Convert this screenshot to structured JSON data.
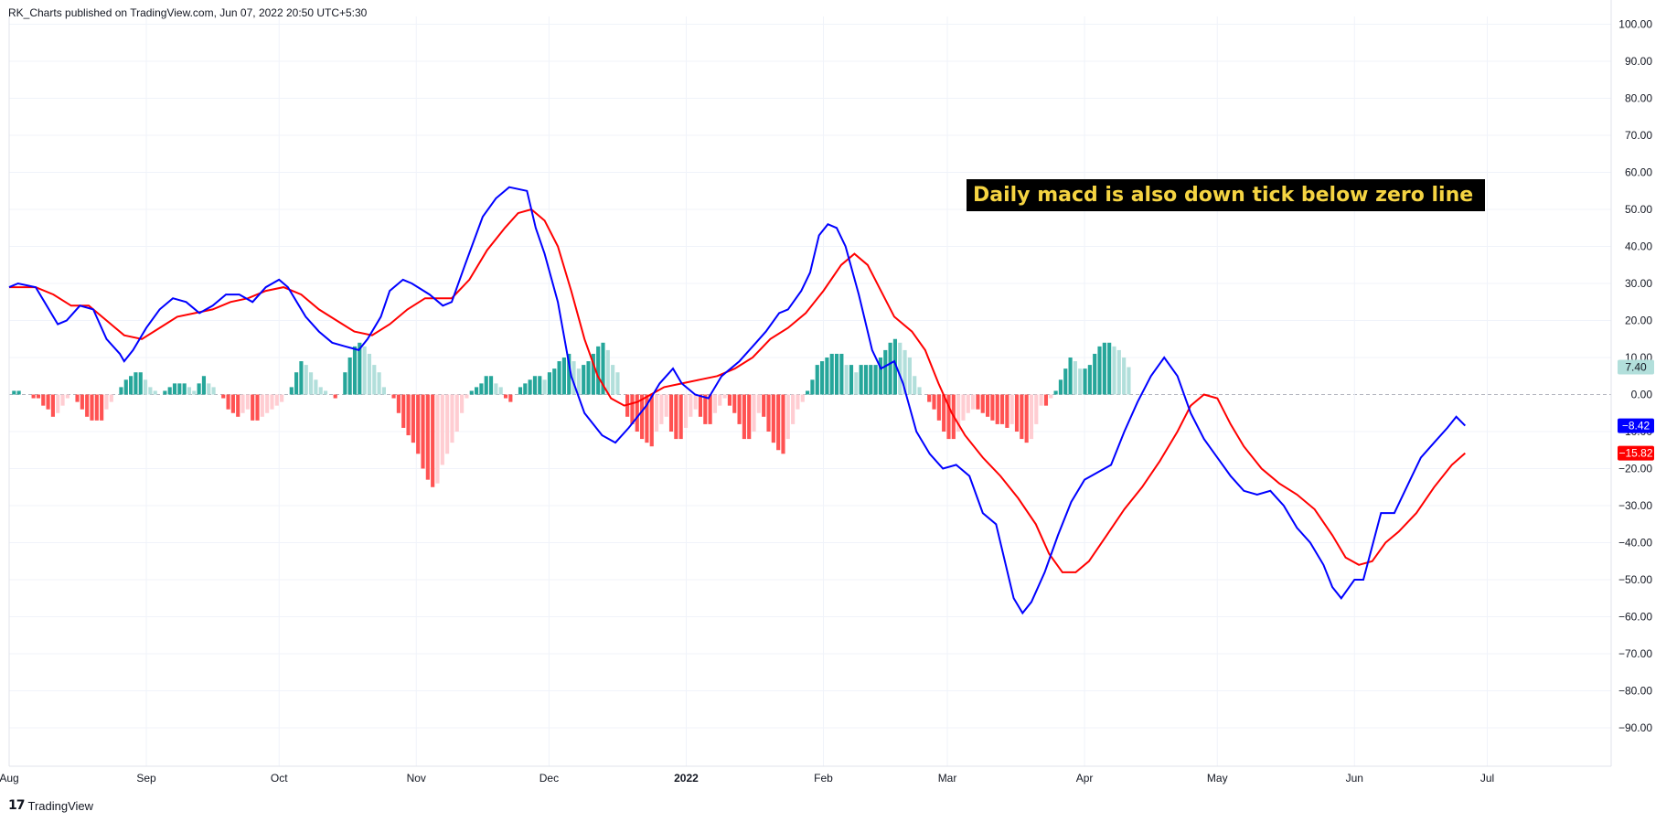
{
  "header": {
    "publisher": "RK_Charts published on TradingView.com, Jun 07, 2022 20:50 UTC+5:30"
  },
  "footer": {
    "brand": "TradingView",
    "logo_icon": "tradingview-logo-icon"
  },
  "colors": {
    "macd": "#0000ff",
    "signal": "#ff0000",
    "hist_pos_rising": "#26a69a",
    "hist_pos_falling": "#b2dfdb",
    "hist_neg_falling": "#ff5252",
    "hist_neg_rising": "#ffcdd2",
    "grid": "#f0f3fa",
    "zero_line": "#b2b5be"
  },
  "chart_data": {
    "type": "line",
    "title": "",
    "annotation": "Daily macd is also down tick below zero line",
    "ylim": [
      -100,
      100
    ],
    "y_ticks": [
      "100.00",
      "90.00",
      "80.00",
      "70.00",
      "60.00",
      "50.00",
      "40.00",
      "30.00",
      "20.00",
      "10.00",
      "0.00",
      "−10.00",
      "−20.00",
      "−30.00",
      "−40.00",
      "−50.00",
      "−60.00",
      "−70.00",
      "−80.00",
      "−90.00"
    ],
    "x_ticks": [
      "Aug",
      "Sep",
      "Oct",
      "Nov",
      "Dec",
      "2022",
      "Feb",
      "Mar",
      "Apr",
      "May",
      "Jun",
      "Jul"
    ],
    "x_tick_days": [
      0,
      31,
      61,
      92,
      122,
      153,
      184,
      212,
      243,
      273,
      304,
      334
    ],
    "x_range_days": [
      0,
      362
    ],
    "last_values": [
      {
        "label": "7.40",
        "value": 7.4,
        "series": "histogram"
      },
      {
        "label": "−8.42",
        "value": -8.42,
        "series": "MACD"
      },
      {
        "label": "−15.82",
        "value": -15.82,
        "series": "Signal"
      }
    ],
    "series": [
      {
        "name": "MACD",
        "type": "line",
        "points": [
          [
            0,
            29
          ],
          [
            2,
            30
          ],
          [
            6,
            29
          ],
          [
            8,
            25
          ],
          [
            11,
            19
          ],
          [
            13,
            20
          ],
          [
            16,
            24
          ],
          [
            19,
            23
          ],
          [
            22,
            15
          ],
          [
            25,
            11
          ],
          [
            26,
            9
          ],
          [
            28,
            12
          ],
          [
            31,
            18
          ],
          [
            34,
            23
          ],
          [
            37,
            26
          ],
          [
            40,
            25
          ],
          [
            43,
            22
          ],
          [
            46,
            24
          ],
          [
            49,
            27
          ],
          [
            52,
            27
          ],
          [
            55,
            25
          ],
          [
            58,
            29
          ],
          [
            61,
            31
          ],
          [
            63,
            29
          ],
          [
            65,
            25
          ],
          [
            67,
            21
          ],
          [
            70,
            17
          ],
          [
            73,
            14
          ],
          [
            76,
            13
          ],
          [
            79,
            12
          ],
          [
            81,
            15
          ],
          [
            84,
            21
          ],
          [
            86,
            28
          ],
          [
            89,
            31
          ],
          [
            91,
            30
          ],
          [
            95,
            27
          ],
          [
            98,
            24
          ],
          [
            100,
            25
          ],
          [
            103,
            35
          ],
          [
            107,
            48
          ],
          [
            110,
            53
          ],
          [
            113,
            56
          ],
          [
            117,
            55
          ],
          [
            119,
            45
          ],
          [
            121,
            38
          ],
          [
            124,
            25
          ],
          [
            127,
            5
          ],
          [
            130,
            -5
          ],
          [
            134,
            -11
          ],
          [
            137,
            -13
          ],
          [
            140,
            -9
          ],
          [
            144,
            -3
          ],
          [
            147,
            3
          ],
          [
            150,
            7
          ],
          [
            152,
            3
          ],
          [
            155,
            0
          ],
          [
            158,
            -1
          ],
          [
            161,
            5
          ],
          [
            165,
            9
          ],
          [
            168,
            13
          ],
          [
            171,
            17
          ],
          [
            174,
            22
          ],
          [
            176,
            23
          ],
          [
            179,
            28
          ],
          [
            181,
            33
          ],
          [
            183,
            43
          ],
          [
            185,
            46
          ],
          [
            187,
            45
          ],
          [
            189,
            40
          ],
          [
            192,
            27
          ],
          [
            195,
            12
          ],
          [
            197,
            7
          ],
          [
            200,
            9
          ],
          [
            202,
            3
          ],
          [
            205,
            -10
          ],
          [
            208,
            -16
          ],
          [
            211,
            -20
          ],
          [
            214,
            -19
          ],
          [
            217,
            -22
          ],
          [
            220,
            -32
          ],
          [
            223,
            -35
          ],
          [
            227,
            -55
          ],
          [
            229,
            -59
          ],
          [
            231,
            -56
          ],
          [
            234,
            -48
          ],
          [
            237,
            -38
          ],
          [
            240,
            -29
          ],
          [
            243,
            -23
          ],
          [
            246,
            -21
          ],
          [
            249,
            -19
          ],
          [
            252,
            -10
          ],
          [
            255,
            -2
          ],
          [
            258,
            5
          ],
          [
            261,
            10
          ],
          [
            264,
            5
          ],
          [
            267,
            -5
          ],
          [
            270,
            -12
          ],
          [
            273,
            -17
          ],
          [
            276,
            -22
          ],
          [
            279,
            -26
          ],
          [
            282,
            -27
          ],
          [
            285,
            -26
          ],
          [
            288,
            -30
          ],
          [
            291,
            -36
          ],
          [
            294,
            -40
          ],
          [
            297,
            -46
          ],
          [
            299,
            -52
          ],
          [
            301,
            -55
          ],
          [
            304,
            -50
          ],
          [
            306,
            -50
          ],
          [
            310,
            -32
          ],
          [
            313,
            -32
          ],
          [
            317,
            -22
          ],
          [
            319,
            -17
          ],
          [
            322,
            -13
          ],
          [
            325,
            -9
          ],
          [
            327,
            -6
          ],
          [
            329,
            -8.42
          ]
        ]
      },
      {
        "name": "Signal",
        "type": "line",
        "points": [
          [
            0,
            29
          ],
          [
            6,
            29
          ],
          [
            10,
            27
          ],
          [
            14,
            24
          ],
          [
            18,
            24
          ],
          [
            22,
            20
          ],
          [
            26,
            16
          ],
          [
            30,
            15
          ],
          [
            34,
            18
          ],
          [
            38,
            21
          ],
          [
            42,
            22
          ],
          [
            46,
            23
          ],
          [
            50,
            25
          ],
          [
            54,
            26
          ],
          [
            58,
            28
          ],
          [
            62,
            29
          ],
          [
            66,
            27
          ],
          [
            70,
            23
          ],
          [
            74,
            20
          ],
          [
            78,
            17
          ],
          [
            82,
            16
          ],
          [
            86,
            19
          ],
          [
            90,
            23
          ],
          [
            94,
            26
          ],
          [
            98,
            26
          ],
          [
            100,
            26
          ],
          [
            104,
            31
          ],
          [
            108,
            39
          ],
          [
            112,
            45
          ],
          [
            115,
            49
          ],
          [
            118,
            50
          ],
          [
            121,
            47
          ],
          [
            124,
            40
          ],
          [
            127,
            28
          ],
          [
            130,
            15
          ],
          [
            133,
            5
          ],
          [
            136,
            -1
          ],
          [
            139,
            -3
          ],
          [
            142,
            -2
          ],
          [
            145,
            0
          ],
          [
            148,
            2
          ],
          [
            152,
            3
          ],
          [
            156,
            4
          ],
          [
            160,
            5
          ],
          [
            164,
            7
          ],
          [
            168,
            10
          ],
          [
            172,
            15
          ],
          [
            176,
            18
          ],
          [
            180,
            22
          ],
          [
            184,
            28
          ],
          [
            188,
            35
          ],
          [
            191,
            38
          ],
          [
            194,
            35
          ],
          [
            197,
            28
          ],
          [
            200,
            21
          ],
          [
            204,
            17
          ],
          [
            207,
            12
          ],
          [
            210,
            3
          ],
          [
            213,
            -5
          ],
          [
            216,
            -11
          ],
          [
            220,
            -17
          ],
          [
            224,
            -22
          ],
          [
            228,
            -28
          ],
          [
            232,
            -35
          ],
          [
            235,
            -43
          ],
          [
            238,
            -48
          ],
          [
            241,
            -48
          ],
          [
            244,
            -45
          ],
          [
            248,
            -38
          ],
          [
            252,
            -31
          ],
          [
            256,
            -25
          ],
          [
            260,
            -18
          ],
          [
            264,
            -10
          ],
          [
            267,
            -3
          ],
          [
            270,
            0
          ],
          [
            273,
            -1
          ],
          [
            276,
            -8
          ],
          [
            279,
            -14
          ],
          [
            283,
            -20
          ],
          [
            287,
            -24
          ],
          [
            291,
            -27
          ],
          [
            295,
            -31
          ],
          [
            299,
            -38
          ],
          [
            302,
            -44
          ],
          [
            305,
            -46
          ],
          [
            308,
            -45
          ],
          [
            311,
            -40
          ],
          [
            314,
            -37
          ],
          [
            318,
            -32
          ],
          [
            322,
            -25
          ],
          [
            326,
            -19
          ],
          [
            329,
            -15.82
          ]
        ]
      },
      {
        "name": "Histogram",
        "type": "bar",
        "x_start_day": 0,
        "step_days": 1.1,
        "values": [
          0,
          1,
          1,
          0,
          0,
          -1,
          -1,
          -3,
          -4,
          -6,
          -5,
          -3,
          -1,
          0,
          -2,
          -4,
          -6,
          -7,
          -7,
          -7,
          -4,
          -2,
          0,
          2,
          4,
          5,
          6,
          6,
          4,
          2,
          1,
          0,
          1,
          2,
          3,
          3,
          3,
          2,
          1,
          3,
          5,
          3,
          2,
          0,
          -1,
          -4,
          -5,
          -6,
          -5,
          -4,
          -7,
          -7,
          -6,
          -5,
          -4,
          -3,
          -2,
          0,
          2,
          6,
          9,
          8,
          6,
          4,
          2,
          1,
          0,
          -1,
          0,
          6,
          10,
          13,
          14,
          13,
          11,
          8,
          6,
          2,
          0,
          -1,
          -5,
          -9,
          -11,
          -13,
          -16,
          -20,
          -23,
          -25,
          -24,
          -19,
          -16,
          -13,
          -10,
          -5,
          -1,
          1,
          2,
          3,
          5,
          5,
          3,
          2,
          -1,
          -2,
          0,
          2,
          3,
          4,
          5,
          5,
          4,
          6,
          7,
          9,
          10,
          11,
          9,
          7,
          8,
          9,
          11,
          13,
          14,
          12,
          8,
          6,
          0,
          -6,
          -8,
          -10,
          -12,
          -13,
          -14,
          -10,
          -8,
          -6,
          -10,
          -12,
          -12,
          -9,
          -6,
          -4,
          -6,
          -8,
          -8,
          -5,
          -3,
          -1,
          -3,
          -5,
          -8,
          -12,
          -12,
          -10,
          -5,
          -6,
          -10,
          -13,
          -15,
          -16,
          -12,
          -8,
          -4,
          -2,
          1,
          4,
          8,
          9,
          10,
          11,
          11,
          11,
          8,
          8,
          6,
          8,
          8,
          8,
          8,
          10,
          12,
          14,
          15,
          14,
          12,
          10,
          5,
          2,
          0,
          -2,
          -4,
          -7,
          -10,
          -12,
          -12,
          -10,
          -7,
          -5,
          -4,
          -4,
          -5,
          -6,
          -7,
          -8,
          -8,
          -9,
          -8,
          -10,
          -12,
          -13,
          -12,
          -8,
          -3,
          -3,
          -1,
          1,
          4,
          7,
          10,
          9,
          7,
          7,
          8,
          11,
          13,
          14,
          14,
          13,
          12,
          10,
          7.4
        ]
      }
    ]
  }
}
